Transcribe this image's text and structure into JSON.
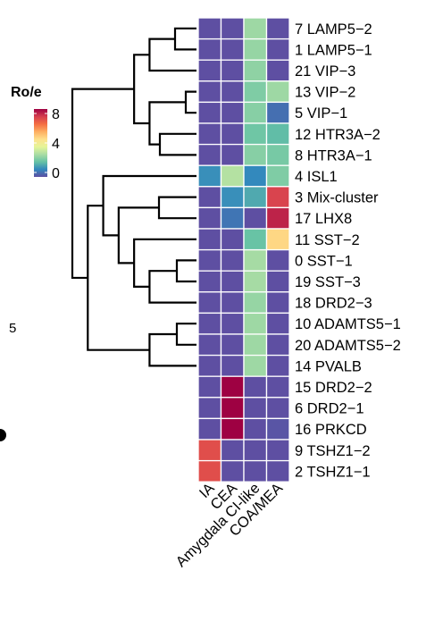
{
  "chart_data": {
    "type": "heatmap",
    "title": "",
    "columns": [
      "IA",
      "CEA",
      "Amygdala CI-like",
      "COA/MEA"
    ],
    "rows": [
      "7 LAMP5−2",
      "1 LAMP5−1",
      "21 VIP−3",
      "13 VIP−2",
      "5 VIP−1",
      "12 HTR3A−2",
      "8 HTR3A−1",
      "4 ISL1",
      "3 Mix-cluster",
      "17 LHX8",
      "11 SST−2",
      "0 SST−1",
      "19 SST−3",
      "18 DRD2−3",
      "10 ADAMTS5−1",
      "20 ADAMTS5−2",
      "14 PVALB",
      "15 DRD2−2",
      "6 DRD2−1",
      "16 PRKCD",
      "9 TSHZ1−2",
      "2 TSHZ1−1"
    ],
    "values": [
      [
        0.0,
        0.0,
        2.5,
        0.0
      ],
      [
        0.0,
        0.0,
        2.4,
        0.0
      ],
      [
        0.0,
        0.0,
        2.3,
        0.0
      ],
      [
        0.0,
        0.0,
        2.1,
        2.5
      ],
      [
        0.0,
        0.0,
        2.2,
        0.5
      ],
      [
        0.0,
        0.0,
        1.9,
        1.7
      ],
      [
        0.0,
        0.0,
        2.2,
        2.0
      ],
      [
        1.0,
        2.8,
        0.9,
        2.1
      ],
      [
        0.0,
        1.0,
        1.4,
        7.0
      ],
      [
        0.0,
        0.6,
        0.0,
        7.5
      ],
      [
        0.0,
        0.0,
        1.8,
        4.6
      ],
      [
        0.0,
        0.0,
        2.6,
        0.0
      ],
      [
        0.0,
        0.0,
        2.6,
        0.0
      ],
      [
        0.0,
        0.0,
        2.4,
        0.0
      ],
      [
        0.0,
        0.0,
        2.5,
        0.0
      ],
      [
        0.0,
        0.0,
        2.5,
        0.0
      ],
      [
        0.0,
        0.0,
        2.5,
        0.0
      ],
      [
        0.0,
        8.0,
        0.0,
        0.0
      ],
      [
        0.0,
        8.0,
        0.0,
        0.0
      ],
      [
        0.0,
        8.0,
        0.0,
        0.1
      ],
      [
        6.8,
        0.0,
        0.0,
        0.0
      ],
      [
        6.8,
        0.0,
        0.0,
        0.0
      ]
    ],
    "legend": {
      "title": "Ro/e",
      "ticks": [
        "8",
        "4",
        "0"
      ],
      "range": [
        0,
        8
      ],
      "colors": [
        "#5e4fa2",
        "#3288bd",
        "#66c2a5",
        "#abdda4",
        "#e6f598",
        "#fee08b",
        "#fdae61",
        "#f46d43",
        "#d53e4f",
        "#9e0142"
      ]
    },
    "dendrogram": {
      "tree": [
        [
          [
            [
              [
                "7 LAMP5−2",
                "1 LAMP5−1"
              ],
              "21 VIP−3"
            ],
            [
              [
                "13 VIP−2",
                "5 VIP−1"
              ],
              [
                "12 HTR3A−2",
                "8 HTR3A−1"
              ]
            ]
          ],
          [
            [
              "4 ISL1",
              [
                [
                  "3 Mix-cluster",
                  "17 LHX8"
                ],
                [
                  "11 SST−2",
                  [
                    [
                      "0 SST−1",
                      "19 SST−3"
                    ],
                    "18 DRD2−3"
                  ]
                ]
              ]
            ],
            [
              [
                "10 ADAMTS5−1",
                "20 ADAMTS5−2"
              ],
              "14 PVALB"
            ]
          ]
        ],
        [
          [
            [
              "15 DRD2−2",
              "6 DRD2−1"
            ],
            "16 PRKCD"
          ],
          [
            "9 TSHZ1−2",
            "2 TSHZ1−1"
          ]
        ]
      ]
    },
    "edge_text": [
      "5",
      "."
    ]
  }
}
